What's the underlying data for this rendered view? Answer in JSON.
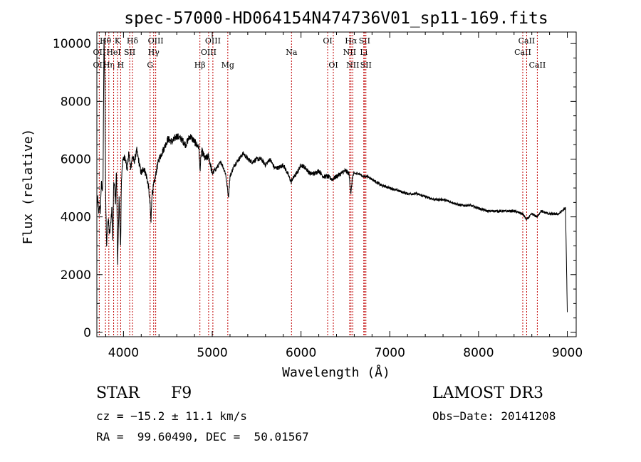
{
  "chart_data": {
    "type": "line",
    "title": "spec-57000-HD064154N474736V01_sp11-169.fits",
    "xlabel": "Wavelength (Å)",
    "ylabel": "Flux (relative)",
    "xlim": [
      3700,
      9100
    ],
    "ylim": [
      -150,
      10400
    ],
    "xticks": [
      4000,
      5000,
      6000,
      7000,
      8000,
      9000
    ],
    "yticks": [
      0,
      2000,
      4000,
      6000,
      8000,
      10000
    ],
    "grid": false,
    "line_color": "#000000",
    "marker_color": "#c00000",
    "series": [
      {
        "name": "flux",
        "x": [
          3700,
          3710,
          3720,
          3730,
          3740,
          3750,
          3760,
          3770,
          3780,
          3790,
          3800,
          3810,
          3820,
          3830,
          3840,
          3850,
          3860,
          3870,
          3880,
          3890,
          3900,
          3910,
          3920,
          3930,
          3933,
          3940,
          3950,
          3960,
          3968,
          3975,
          3985,
          4000,
          4020,
          4040,
          4060,
          4080,
          4101,
          4120,
          4150,
          4180,
          4200,
          4230,
          4260,
          4280,
          4300,
          4310,
          4320,
          4330,
          4340,
          4350,
          4370,
          4400,
          4430,
          4460,
          4500,
          4550,
          4600,
          4650,
          4700,
          4750,
          4800,
          4850,
          4861,
          4880,
          4920,
          4960,
          5000,
          5050,
          5100,
          5150,
          5170,
          5183,
          5200,
          5250,
          5300,
          5350,
          5400,
          5450,
          5500,
          5550,
          5600,
          5650,
          5700,
          5750,
          5800,
          5850,
          5890,
          5900,
          5950,
          6000,
          6050,
          6100,
          6150,
          6200,
          6250,
          6300,
          6350,
          6400,
          6450,
          6500,
          6540,
          6563,
          6580,
          6600,
          6650,
          6700,
          6750,
          6800,
          6900,
          7000,
          7100,
          7200,
          7300,
          7400,
          7500,
          7600,
          7700,
          7800,
          7900,
          8000,
          8100,
          8200,
          8300,
          8400,
          8498,
          8542,
          8600,
          8662,
          8700,
          8800,
          8900,
          8980,
          9000
        ],
        "y": [
          4300,
          4700,
          4100,
          4400,
          4200,
          5200,
          4900,
          5300,
          10200,
          8600,
          4500,
          3000,
          3700,
          4000,
          3400,
          3600,
          3900,
          4300,
          3100,
          5200,
          5000,
          4500,
          5600,
          3800,
          2100,
          3200,
          4700,
          3600,
          3000,
          5000,
          5800,
          6000,
          6100,
          5600,
          6200,
          5700,
          6100,
          5900,
          6300,
          5800,
          5500,
          5700,
          5400,
          5100,
          4400,
          3800,
          4800,
          4900,
          5100,
          5200,
          5600,
          6000,
          6200,
          6400,
          6700,
          6600,
          6800,
          6700,
          6500,
          6800,
          6600,
          6400,
          5600,
          6300,
          6000,
          6100,
          5500,
          5700,
          5900,
          5500,
          5000,
          4700,
          5400,
          5800,
          6000,
          6200,
          6000,
          5900,
          6000,
          6000,
          5800,
          6000,
          5700,
          5700,
          5800,
          5500,
          5200,
          5300,
          5500,
          5800,
          5700,
          5500,
          5500,
          5600,
          5400,
          5400,
          5300,
          5400,
          5500,
          5600,
          5500,
          4800,
          5400,
          5500,
          5500,
          5400,
          5400,
          5300,
          5100,
          5000,
          4900,
          4800,
          4800,
          4700,
          4600,
          4600,
          4500,
          4400,
          4400,
          4300,
          4200,
          4200,
          4200,
          4200,
          4100,
          3900,
          4100,
          4000,
          4200,
          4100,
          4100,
          4300,
          700
        ]
      }
    ],
    "line_markers": [
      {
        "w": 3727,
        "label": "OII",
        "row": 2
      },
      {
        "w": 3727,
        "label": "OII",
        "row": 3
      },
      {
        "w": 3797,
        "label": "Hθ",
        "row": 1
      },
      {
        "w": 3835,
        "label": "Hη",
        "row": 3
      },
      {
        "w": 3889,
        "label": "HeI",
        "row": 2
      },
      {
        "w": 3933,
        "label": "K",
        "row": 1
      },
      {
        "w": 3968,
        "label": "H",
        "row": 3
      },
      {
        "w": 4070,
        "label": "SII",
        "row": 2
      },
      {
        "w": 4101,
        "label": "Hδ",
        "row": 1
      },
      {
        "w": 4300,
        "label": "G",
        "row": 3
      },
      {
        "w": 4340,
        "label": "Hγ",
        "row": 2
      },
      {
        "w": 4363,
        "label": "OIII",
        "row": 1
      },
      {
        "w": 4861,
        "label": "Hβ",
        "row": 3
      },
      {
        "w": 4959,
        "label": "OIII",
        "row": 2
      },
      {
        "w": 5007,
        "label": "OIII",
        "row": 1
      },
      {
        "w": 5175,
        "label": "Mg",
        "row": 3
      },
      {
        "w": 5893,
        "label": "Na",
        "row": 2
      },
      {
        "w": 6300,
        "label": "OI",
        "row": 1
      },
      {
        "w": 6364,
        "label": "OI",
        "row": 3
      },
      {
        "w": 6548,
        "label": "NII",
        "row": 2
      },
      {
        "w": 6563,
        "label": "Hα",
        "row": 1
      },
      {
        "w": 6583,
        "label": "NII",
        "row": 3
      },
      {
        "w": 6707,
        "label": "Li",
        "row": 2
      },
      {
        "w": 6716,
        "label": "SII",
        "row": 1
      },
      {
        "w": 6731,
        "label": "SII",
        "row": 3
      },
      {
        "w": 8498,
        "label": "CaII",
        "row": 2
      },
      {
        "w": 8542,
        "label": "CaII",
        "row": 1
      },
      {
        "w": 8662,
        "label": "CaII",
        "row": 3
      }
    ]
  },
  "info": {
    "class_label": "STAR",
    "subclass": "F9",
    "survey": "LAMOST DR3",
    "redshift": "cz = −15.2 ± 11.1 km/s",
    "obs_date": "Obs−Date: 20141208",
    "coords": "RA =  99.60490, DEC =  50.01567"
  }
}
